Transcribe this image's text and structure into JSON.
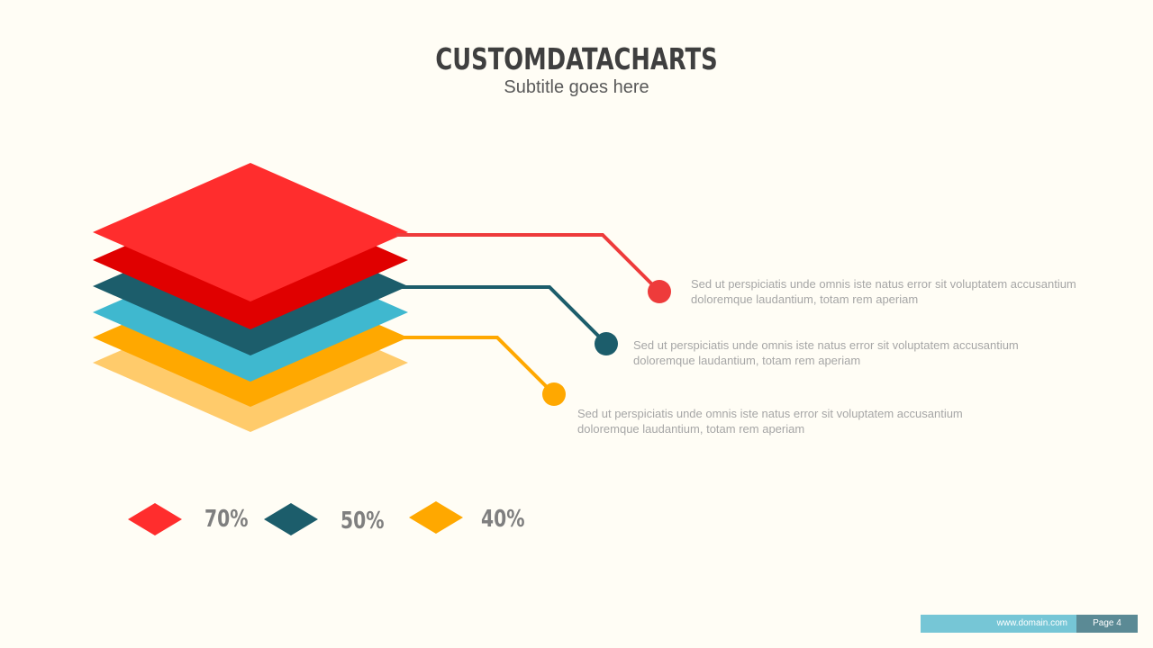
{
  "header": {
    "title": "CUSTOMDATACHARTS",
    "subtitle": "Subtitle goes here"
  },
  "layers": [
    {
      "color": "#ffcb6b"
    },
    {
      "color": "#ffa800"
    },
    {
      "color": "#3fb8cf"
    },
    {
      "color": "#1c5d6b"
    },
    {
      "color": "#e00000"
    },
    {
      "color": "#ff2d2d"
    }
  ],
  "callouts": [
    {
      "color": "#ee3b3b",
      "line1": "Sed ut perspiciatis unde omnis iste natus error sit voluptatem accusantium",
      "line2": "doloremque laudantium, totam rem aperiam"
    },
    {
      "color": "#1c5d6b",
      "line1": "Sed ut perspiciatis unde omnis iste natus error sit voluptatem accusantium",
      "line2": "doloremque laudantium, totam rem aperiam"
    },
    {
      "color": "#ffa800",
      "line1": "Sed ut perspiciatis unde omnis iste natus error sit voluptatem accusantium",
      "line2": "doloremque laudantium, totam rem aperiam"
    }
  ],
  "legend": [
    {
      "color": "#ff2d2d",
      "value": "70%"
    },
    {
      "color": "#1c5d6b",
      "value": "50%"
    },
    {
      "color": "#ffa800",
      "value": "40%"
    }
  ],
  "footer": {
    "url": "www.domain.com",
    "page": "Page 4"
  }
}
